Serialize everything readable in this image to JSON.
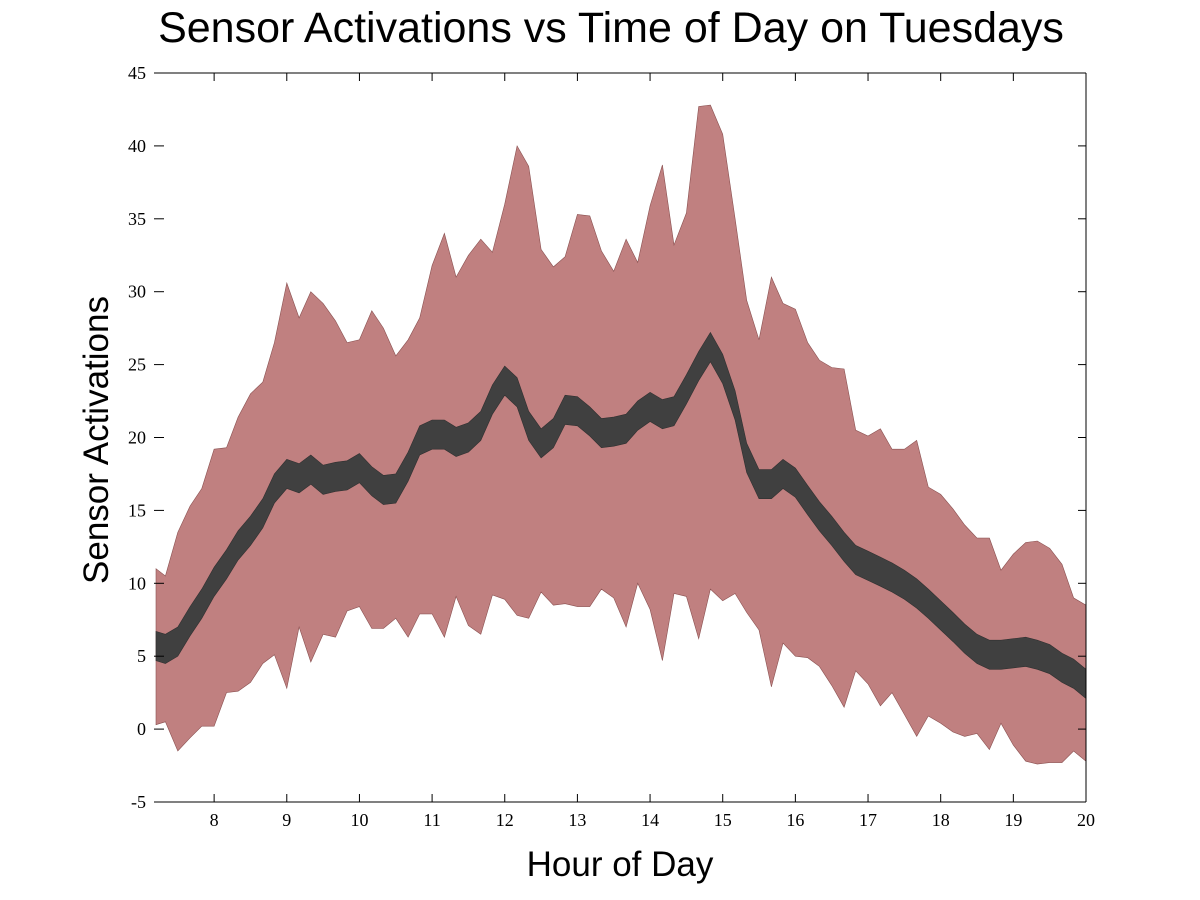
{
  "chart_data": {
    "type": "area",
    "title": "Sensor Activations vs Time of Day on Tuesdays",
    "xlabel": "Hour of Day",
    "ylabel": "Sensor Activations",
    "xlim": [
      7.2,
      20
    ],
    "ylim": [
      -5,
      45
    ],
    "xticks": [
      "8",
      "9",
      "10",
      "11",
      "12",
      "13",
      "14",
      "15",
      "16",
      "17",
      "18",
      "19",
      "20"
    ],
    "yticks": [
      "-5",
      "0",
      "5",
      "10",
      "15",
      "20",
      "25",
      "30",
      "35",
      "40",
      "45"
    ],
    "grid": false,
    "colors": {
      "outer_band": "#c08080",
      "inner_band": "#404040"
    },
    "x": [
      7.2,
      7.33,
      7.5,
      7.67,
      7.83,
      8.0,
      8.17,
      8.33,
      8.5,
      8.67,
      8.83,
      9.0,
      9.17,
      9.33,
      9.5,
      9.67,
      9.83,
      10.0,
      10.17,
      10.33,
      10.5,
      10.67,
      10.83,
      11.0,
      11.17,
      11.33,
      11.5,
      11.67,
      11.83,
      12.0,
      12.17,
      12.33,
      12.5,
      12.67,
      12.83,
      13.0,
      13.17,
      13.33,
      13.5,
      13.67,
      13.83,
      14.0,
      14.17,
      14.33,
      14.5,
      14.67,
      14.83,
      15.0,
      15.17,
      15.33,
      15.5,
      15.67,
      15.83,
      16.0,
      16.17,
      16.33,
      16.5,
      16.67,
      16.83,
      17.0,
      17.17,
      17.33,
      17.5,
      17.67,
      17.83,
      18.0,
      18.17,
      18.33,
      18.5,
      18.67,
      18.83,
      19.0,
      19.17,
      19.33,
      19.5,
      19.67,
      19.83,
      20.0
    ],
    "series": [
      {
        "values_upper": [
          11.0,
          10.5,
          13.5,
          15.3,
          16.5,
          19.2,
          19.3,
          21.4,
          23.0,
          23.8,
          26.5,
          30.6,
          28.2,
          30.0,
          29.2,
          28.0,
          26.5,
          26.7,
          28.7,
          27.5,
          25.6,
          26.7,
          28.2,
          31.8,
          34.0,
          31.0,
          32.5,
          33.6,
          32.7,
          36.0,
          40.0,
          38.6,
          32.9,
          31.7,
          32.4,
          35.3,
          35.2,
          32.8,
          31.4,
          33.6,
          32.0,
          35.9,
          38.7,
          33.2,
          35.4,
          42.7,
          42.8,
          40.8,
          35.0,
          29.4,
          26.7,
          31.0,
          29.2,
          28.8,
          26.5,
          25.3,
          24.8,
          24.7,
          20.5,
          20.1,
          20.6,
          19.2,
          19.2,
          19.8,
          16.6,
          16.1,
          15.1,
          14.0,
          13.1,
          13.1,
          10.9,
          12.0,
          12.8,
          12.9,
          12.4,
          11.3,
          9.0,
          8.5
        ],
        "values_lower": [
          0.3,
          0.5,
          -1.5,
          -0.6,
          0.2,
          0.2,
          2.5,
          2.6,
          3.2,
          4.5,
          5.1,
          2.8,
          7.0,
          4.6,
          6.5,
          6.3,
          8.1,
          8.4,
          6.9,
          6.9,
          7.6,
          6.3,
          7.9,
          7.9,
          6.3,
          9.1,
          7.1,
          6.5,
          9.2,
          8.9,
          7.8,
          7.6,
          9.4,
          8.5,
          8.6,
          8.4,
          8.4,
          9.6,
          9.0,
          7.0,
          10.0,
          8.2,
          4.7,
          9.3,
          9.1,
          6.2,
          9.6,
          8.8,
          9.3,
          8.0,
          6.8,
          2.9,
          5.9,
          5.0,
          4.9,
          4.3,
          3.0,
          1.5,
          4.0,
          3.1,
          1.6,
          2.5,
          1.0,
          -0.5,
          0.9,
          0.4,
          -0.2,
          -0.5,
          -0.3,
          -1.4,
          0.4,
          -1.1,
          -2.2,
          -2.4,
          -2.3,
          -2.3,
          -1.5,
          -2.2
        ],
        "values_inner_upper": [
          6.7,
          6.5,
          7.0,
          8.4,
          9.6,
          11.1,
          12.3,
          13.6,
          14.6,
          15.8,
          17.5,
          18.5,
          18.2,
          18.8,
          18.1,
          18.3,
          18.4,
          18.9,
          18.0,
          17.4,
          17.5,
          19.0,
          20.8,
          21.2,
          21.2,
          20.7,
          21.0,
          21.8,
          23.6,
          24.9,
          24.1,
          21.8,
          20.6,
          21.3,
          22.9,
          22.8,
          22.1,
          21.3,
          21.4,
          21.6,
          22.5,
          23.1,
          22.6,
          22.8,
          24.3,
          25.9,
          27.2,
          25.7,
          23.2,
          19.6,
          17.8,
          17.8,
          18.5,
          17.9,
          16.7,
          15.6,
          14.6,
          13.5,
          12.6,
          12.2,
          11.8,
          11.4,
          10.9,
          10.3,
          9.6,
          8.8,
          8.0,
          7.2,
          6.5,
          6.1,
          6.1,
          6.2,
          6.3,
          6.1,
          5.8,
          5.2,
          4.8,
          4.1
        ],
        "values_inner_lower": [
          4.7,
          4.5,
          5.0,
          6.4,
          7.6,
          9.1,
          10.3,
          11.6,
          12.6,
          13.8,
          15.5,
          16.5,
          16.2,
          16.8,
          16.1,
          16.3,
          16.4,
          16.9,
          16.0,
          15.4,
          15.5,
          17.0,
          18.8,
          19.2,
          19.2,
          18.7,
          19.0,
          19.8,
          21.6,
          22.9,
          22.1,
          19.8,
          18.6,
          19.3,
          20.9,
          20.8,
          20.1,
          19.3,
          19.4,
          19.6,
          20.5,
          21.1,
          20.6,
          20.8,
          22.3,
          23.9,
          25.2,
          23.7,
          21.2,
          17.6,
          15.8,
          15.8,
          16.5,
          15.9,
          14.7,
          13.6,
          12.6,
          11.5,
          10.6,
          10.2,
          9.8,
          9.4,
          8.9,
          8.3,
          7.6,
          6.8,
          6.0,
          5.2,
          4.5,
          4.1,
          4.1,
          4.2,
          4.3,
          4.1,
          3.8,
          3.2,
          2.8,
          2.1
        ]
      }
    ]
  }
}
